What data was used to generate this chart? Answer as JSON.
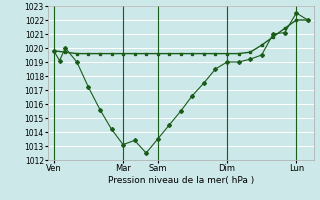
{
  "xlabel": "Pression niveau de la mer( hPa )",
  "bg_color": "#cce8e8",
  "grid_color": "#ffffff",
  "line_color": "#1a5c1a",
  "ylim": [
    1012,
    1023
  ],
  "yticks": [
    1012,
    1013,
    1014,
    1015,
    1016,
    1017,
    1018,
    1019,
    1020,
    1021,
    1022,
    1023
  ],
  "xtick_labels": [
    "Ven",
    "Mar",
    "Sam",
    "Dim",
    "Lun"
  ],
  "xtick_positions": [
    0,
    12,
    18,
    30,
    42
  ],
  "xlim": [
    -1,
    45
  ],
  "line1_x": [
    0,
    1,
    2,
    4,
    6,
    8,
    10,
    12,
    14,
    16,
    18,
    20,
    22,
    24,
    26,
    28,
    30,
    32,
    34,
    36,
    38,
    40,
    42,
    44
  ],
  "line1_y": [
    1019.8,
    1019.1,
    1020.0,
    1019.0,
    1017.2,
    1015.6,
    1014.2,
    1013.1,
    1013.4,
    1012.5,
    1013.5,
    1014.5,
    1015.5,
    1016.6,
    1017.5,
    1018.5,
    1019.0,
    1019.0,
    1019.2,
    1019.5,
    1021.0,
    1021.1,
    1022.5,
    1022.0
  ],
  "line2_x": [
    0,
    2,
    4,
    6,
    8,
    10,
    12,
    14,
    16,
    18,
    20,
    22,
    24,
    26,
    28,
    30,
    32,
    34,
    36,
    38,
    40,
    42,
    44
  ],
  "line2_y": [
    1019.8,
    1019.7,
    1019.6,
    1019.6,
    1019.6,
    1019.6,
    1019.6,
    1019.6,
    1019.6,
    1019.6,
    1019.6,
    1019.6,
    1019.6,
    1019.6,
    1019.6,
    1019.6,
    1019.6,
    1019.7,
    1020.2,
    1020.8,
    1021.4,
    1022.0,
    1022.0
  ],
  "vlines_x": [
    0,
    12,
    18,
    30,
    42
  ]
}
